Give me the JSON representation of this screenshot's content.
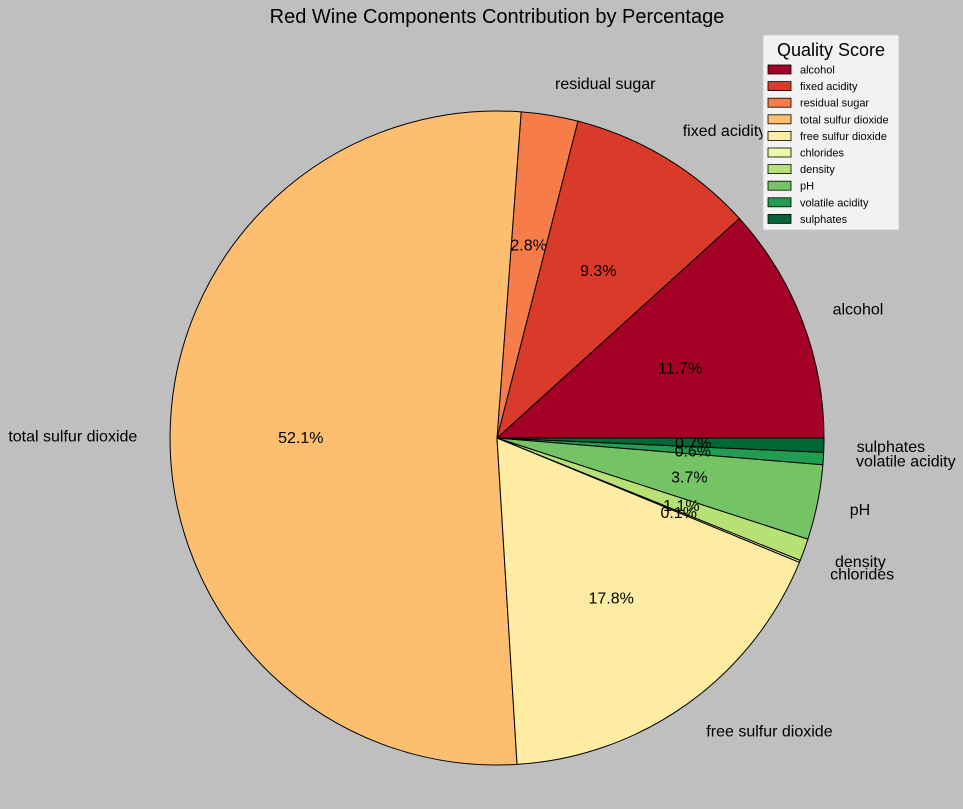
{
  "chart_data": {
    "type": "pie",
    "title": "Red Wine Components Contribution by Percentage",
    "legend": {
      "title": "Quality Score",
      "placement": "top-right"
    },
    "slices": [
      {
        "label": "alcohol",
        "value": 11.7,
        "pct_label": "11.7%",
        "color": "#a50026"
      },
      {
        "label": "fixed acidity",
        "value": 9.3,
        "pct_label": "9.3%",
        "color": "#da3a2a"
      },
      {
        "label": "residual sugar",
        "value": 2.8,
        "pct_label": "2.8%",
        "color": "#f67c4a"
      },
      {
        "label": "total sulfur dioxide",
        "value": 52.1,
        "pct_label": "52.1%",
        "color": "#fdbe70"
      },
      {
        "label": "free sulfur dioxide",
        "value": 17.8,
        "pct_label": "17.8%",
        "color": "#feeca2"
      },
      {
        "label": "chlorides",
        "value": 0.1,
        "pct_label": "0.1%",
        "color": "#eff8a6"
      },
      {
        "label": "density",
        "value": 1.1,
        "pct_label": "1.1%",
        "color": "#b7e075"
      },
      {
        "label": "pH",
        "value": 3.7,
        "pct_label": "3.7%",
        "color": "#74c365"
      },
      {
        "label": "volatile acidity",
        "value": 0.6,
        "pct_label": "0.6%",
        "color": "#229c52"
      },
      {
        "label": "sulphates",
        "value": 0.7,
        "pct_label": "0.7%",
        "color": "#006837"
      }
    ],
    "start_angle_deg": 0,
    "direction": "counterclockwise"
  }
}
